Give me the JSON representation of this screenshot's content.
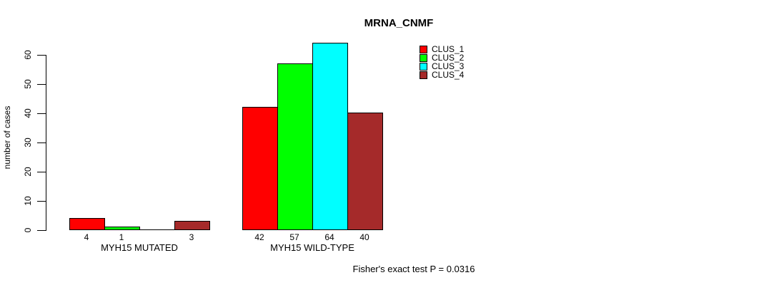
{
  "chart_data": {
    "type": "bar",
    "title": "MRNA_CNMF",
    "ylabel": "number of cases",
    "ylim": [
      0,
      60
    ],
    "yticks": [
      0,
      10,
      20,
      30,
      40,
      50,
      60
    ],
    "grid": false,
    "legend_position": "top-right",
    "series_names": [
      "CLUS_1",
      "CLUS_2",
      "CLUS_3",
      "CLUS_4"
    ],
    "colors": [
      "#FF0000",
      "#00FF00",
      "#00FFFF",
      "#A52A2A"
    ],
    "groups": [
      {
        "label": "MYH15 MUTATED",
        "values": [
          4,
          1,
          0,
          3
        ],
        "bar_labels": [
          "4",
          "1",
          "",
          "3"
        ]
      },
      {
        "label": "MYH15 WILD-TYPE",
        "values": [
          42,
          57,
          64,
          40
        ],
        "bar_labels": [
          "42",
          "57",
          "64",
          "40"
        ]
      }
    ],
    "annotation": "Fisher's exact test P = 0.0316"
  },
  "legend": {
    "items": [
      {
        "label": "CLUS_1",
        "color": "#FF0000"
      },
      {
        "label": "CLUS_2",
        "color": "#00FF00"
      },
      {
        "label": "CLUS_3",
        "color": "#00FFFF"
      },
      {
        "label": "CLUS_4",
        "color": "#A52A2A"
      }
    ]
  }
}
